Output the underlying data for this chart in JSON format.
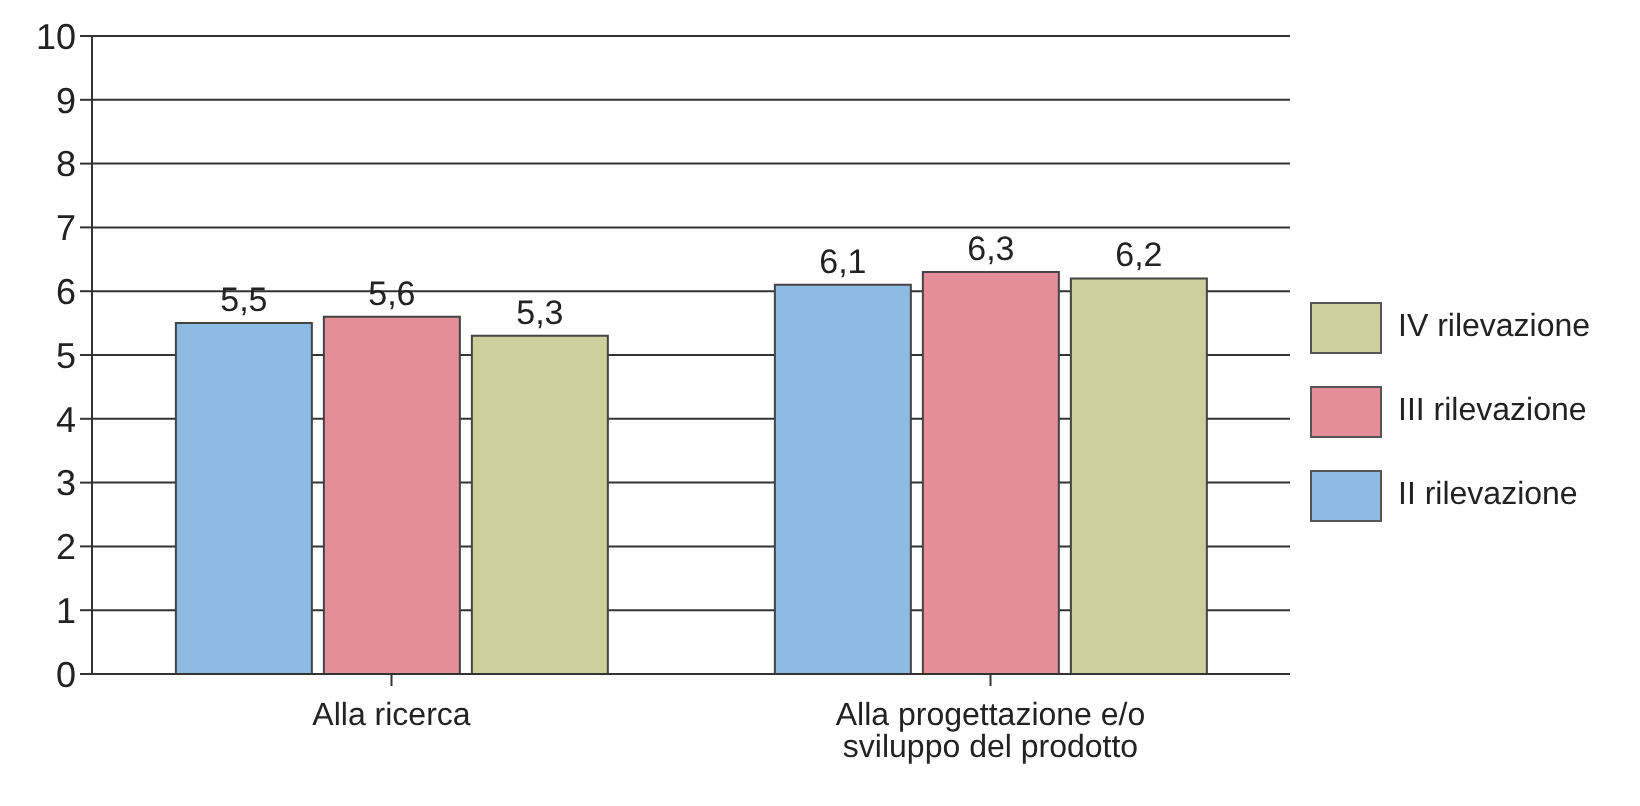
{
  "chart_data": {
    "type": "bar",
    "categories": [
      "Alla ricerca",
      "Alla progettazione e/o sviluppo del prodotto"
    ],
    "series": [
      {
        "name": "II rilevazione",
        "color": "#8dbbe3",
        "values": [
          5.5,
          6.1
        ],
        "value_labels": [
          "5,5",
          "6,1"
        ]
      },
      {
        "name": "III rilevazione",
        "color": "#e48e9a",
        "values": [
          5.6,
          6.3
        ],
        "value_labels": [
          "5,6",
          "6,3"
        ]
      },
      {
        "name": "IV rilevazione",
        "color": "#cdd09c",
        "values": [
          5.3,
          6.2
        ],
        "value_labels": [
          "5,3",
          "6,2"
        ]
      }
    ],
    "ylim": [
      0,
      10
    ],
    "yticks": [
      0,
      1,
      2,
      3,
      4,
      5,
      6,
      7,
      8,
      9,
      10
    ],
    "grid": "y",
    "legend": "right"
  }
}
